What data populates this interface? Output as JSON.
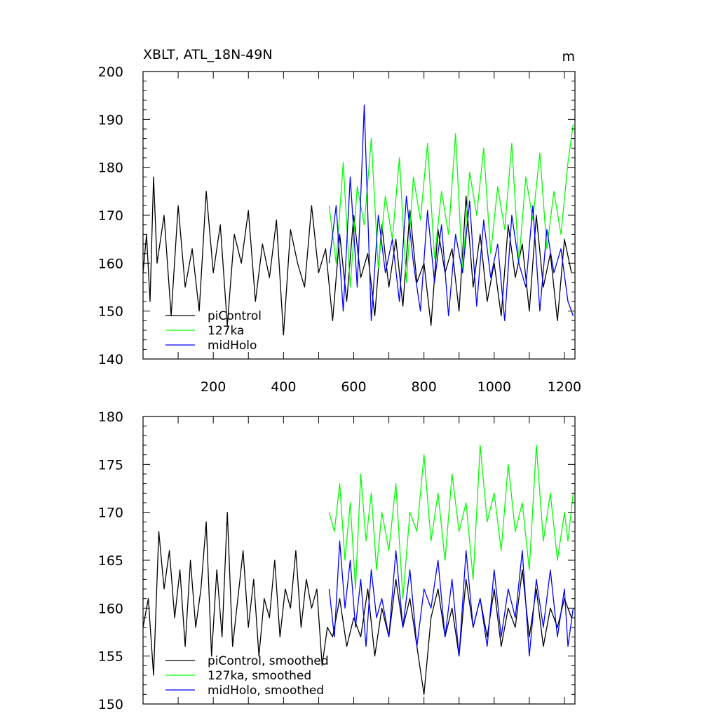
{
  "chart_data": [
    {
      "type": "line",
      "title": "XBLT, ATL_18N-49N",
      "unit_label": "m",
      "xlim": [
        0,
        1230
      ],
      "ylim": [
        140,
        200
      ],
      "xticks": [
        200,
        400,
        600,
        800,
        1000,
        1200
      ],
      "xtick_labels": [
        "200",
        "400",
        "600",
        "800",
        "1000",
        "1200"
      ],
      "yticks": [
        140,
        150,
        160,
        170,
        180,
        190,
        200
      ],
      "ytick_labels": [
        "140",
        "150",
        "160",
        "170",
        "180",
        "190",
        "200"
      ],
      "legend_position": "bottom-left",
      "series": [
        {
          "name": "piControl",
          "color": "#000000",
          "x": [
            0,
            10,
            20,
            30,
            40,
            60,
            80,
            100,
            120,
            140,
            160,
            180,
            200,
            220,
            240,
            260,
            280,
            300,
            320,
            340,
            360,
            380,
            400,
            420,
            440,
            460,
            480,
            500,
            520,
            540,
            560,
            580,
            600,
            620,
            640,
            660,
            680,
            700,
            720,
            740,
            760,
            780,
            800,
            820,
            840,
            860,
            880,
            900,
            920,
            940,
            960,
            980,
            1000,
            1020,
            1040,
            1060,
            1080,
            1100,
            1120,
            1140,
            1160,
            1180,
            1200,
            1220
          ],
          "y": [
            158,
            166,
            152,
            178,
            160,
            170,
            149,
            172,
            155,
            163,
            150,
            175,
            158,
            168,
            147,
            166,
            160,
            171,
            152,
            164,
            157,
            169,
            145,
            167,
            160,
            155,
            172,
            158,
            163,
            148,
            166,
            152,
            170,
            157,
            162,
            149,
            168,
            155,
            165,
            151,
            171,
            156,
            160,
            147,
            167,
            158,
            163,
            150,
            174,
            155,
            166,
            152,
            160,
            149,
            168,
            157,
            164,
            150,
            170,
            155,
            162,
            148,
            165,
            158
          ]
        },
        {
          "name": "127ka",
          "color": "#00ff00",
          "x": [
            530,
            550,
            570,
            590,
            610,
            630,
            650,
            670,
            690,
            710,
            730,
            750,
            770,
            790,
            810,
            830,
            850,
            870,
            890,
            910,
            930,
            950,
            970,
            990,
            1010,
            1030,
            1050,
            1070,
            1090,
            1110,
            1130,
            1150,
            1170,
            1190,
            1210,
            1225
          ],
          "y": [
            172,
            160,
            181,
            155,
            176,
            168,
            186,
            159,
            174,
            165,
            182,
            156,
            178,
            169,
            185,
            161,
            175,
            166,
            187,
            158,
            179,
            170,
            184,
            162,
            176,
            167,
            185,
            160,
            178,
            169,
            183,
            163,
            175,
            166,
            181,
            189
          ]
        },
        {
          "name": "midHolo",
          "color": "#0000ff",
          "x": [
            530,
            550,
            570,
            590,
            610,
            630,
            650,
            670,
            690,
            710,
            730,
            750,
            770,
            790,
            810,
            830,
            850,
            870,
            890,
            910,
            930,
            950,
            970,
            990,
            1010,
            1030,
            1050,
            1070,
            1090,
            1110,
            1130,
            1150,
            1170,
            1190,
            1210,
            1225
          ],
          "y": [
            160,
            172,
            150,
            178,
            155,
            193,
            148,
            170,
            158,
            165,
            152,
            174,
            160,
            150,
            171,
            156,
            168,
            149,
            166,
            158,
            173,
            151,
            169,
            157,
            164,
            148,
            170,
            160,
            155,
            172,
            150,
            167,
            158,
            163,
            152,
            149
          ]
        }
      ]
    },
    {
      "type": "line",
      "title": "",
      "xlim": [
        0,
        1230
      ],
      "ylim": [
        150,
        180
      ],
      "yticks": [
        150,
        155,
        160,
        165,
        170,
        175,
        180
      ],
      "ytick_labels": [
        "150",
        "155",
        "160",
        "165",
        "170",
        "175",
        "180"
      ],
      "legend_position": "bottom-left",
      "series": [
        {
          "name": "piControl, smoothed",
          "color": "#000000",
          "x": [
            0,
            15,
            30,
            45,
            60,
            75,
            90,
            105,
            120,
            135,
            150,
            165,
            180,
            195,
            210,
            225,
            240,
            255,
            270,
            285,
            300,
            315,
            330,
            345,
            360,
            375,
            390,
            405,
            420,
            435,
            450,
            465,
            480,
            495,
            510,
            525,
            540,
            560,
            580,
            600,
            620,
            640,
            660,
            680,
            700,
            720,
            740,
            760,
            780,
            800,
            820,
            840,
            860,
            880,
            900,
            920,
            940,
            960,
            980,
            1000,
            1020,
            1040,
            1060,
            1080,
            1100,
            1120,
            1140,
            1160,
            1180,
            1200,
            1220
          ],
          "y": [
            158,
            161,
            153,
            168,
            162,
            166,
            159,
            164,
            156,
            165,
            158,
            162,
            169,
            155,
            164,
            157,
            170,
            156,
            161,
            166,
            158,
            163,
            155,
            161,
            159,
            165,
            157,
            162,
            160,
            166,
            158,
            163,
            160,
            162,
            154,
            158,
            157,
            161,
            156,
            159,
            157,
            162,
            155,
            160,
            157,
            163,
            158,
            161,
            156,
            151,
            159,
            162,
            157,
            160,
            155,
            163,
            158,
            161,
            157,
            162,
            156,
            160,
            158,
            164,
            157,
            162,
            156,
            160,
            158,
            161,
            159
          ]
        },
        {
          "name": "127ka, smoothed",
          "color": "#00ff00",
          "x": [
            530,
            545,
            560,
            575,
            590,
            605,
            620,
            635,
            650,
            665,
            680,
            700,
            720,
            740,
            760,
            780,
            800,
            820,
            840,
            860,
            880,
            900,
            920,
            940,
            960,
            980,
            1000,
            1020,
            1040,
            1060,
            1080,
            1100,
            1120,
            1140,
            1160,
            1180,
            1200,
            1210,
            1225
          ],
          "y": [
            170,
            168,
            173,
            165,
            171,
            162,
            174,
            167,
            172,
            164,
            170,
            166,
            173,
            161,
            170,
            168,
            176,
            167,
            172,
            165,
            174,
            168,
            171,
            163,
            177,
            169,
            172,
            166,
            175,
            168,
            171,
            164,
            177,
            167,
            172,
            165,
            170,
            167,
            172
          ]
        },
        {
          "name": "midHolo, smoothed",
          "color": "#0000ff",
          "x": [
            530,
            545,
            560,
            575,
            590,
            605,
            620,
            635,
            650,
            665,
            680,
            700,
            720,
            740,
            760,
            780,
            800,
            820,
            840,
            860,
            880,
            900,
            920,
            940,
            960,
            980,
            1000,
            1020,
            1040,
            1060,
            1080,
            1100,
            1120,
            1140,
            1160,
            1180,
            1200,
            1210,
            1225
          ],
          "y": [
            162,
            157,
            167,
            160,
            165,
            158,
            163,
            156,
            164,
            159,
            161,
            157,
            166,
            158,
            164,
            156,
            162,
            160,
            165,
            157,
            163,
            155,
            166,
            158,
            161,
            156,
            164,
            157,
            162,
            159,
            166,
            155,
            163,
            158,
            164,
            157,
            162,
            156,
            160
          ]
        }
      ]
    }
  ]
}
